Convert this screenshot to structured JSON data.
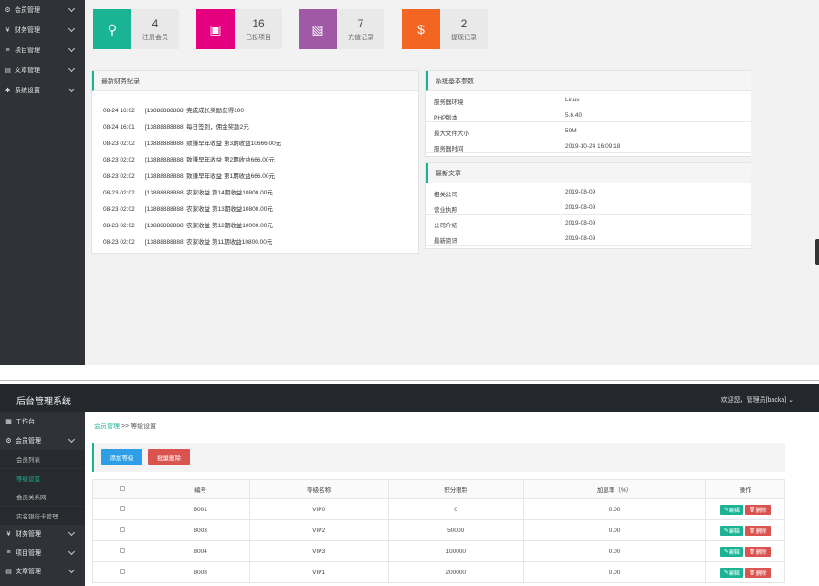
{
  "top": {
    "sidebar": [
      {
        "icon": "gear-icon",
        "label": "会员管理"
      },
      {
        "icon": "money-icon",
        "label": "财务管理"
      },
      {
        "icon": "list-icon",
        "label": "项目管理"
      },
      {
        "icon": "doc-icon",
        "label": "文章管理"
      },
      {
        "icon": "cog-icon",
        "label": "系统设置"
      }
    ],
    "stats": [
      {
        "num": "4",
        "label": "注册会员",
        "color": "#1ab394",
        "icon": "user-icon"
      },
      {
        "num": "16",
        "label": "已投项目",
        "color": "#e4007f",
        "icon": "file-icon"
      },
      {
        "num": "7",
        "label": "充值记录",
        "color": "#a05aa5",
        "icon": "wallet-icon"
      },
      {
        "num": "2",
        "label": "提现记录",
        "color": "#f26522",
        "icon": "moneybag-icon"
      }
    ],
    "finance_panel": {
      "title": "最新财务纪录",
      "rows": [
        {
          "time": "08-24 16:02",
          "text": "[13888888888] 完成成长奖励获得100"
        },
        {
          "time": "08-24 16:01",
          "text": "[13888888888] 每日签到，佣金奖励2元"
        },
        {
          "time": "08-23 02:02",
          "text": "[13888888888] 致赚早年收益 第3期收益10666.00元"
        },
        {
          "time": "08-23 02:02",
          "text": "[13888888888] 致赚早年收益 第2期收益666.00元"
        },
        {
          "time": "08-23 02:02",
          "text": "[13888888888] 致赚早年收益 第1期收益666.00元"
        },
        {
          "time": "08-23 02:02",
          "text": "[13888888888] 农家收益 第14期收益10800.00元"
        },
        {
          "time": "08-23 02:02",
          "text": "[13888888888] 农家收益 第13期收益10800.00元"
        },
        {
          "time": "08-23 02:02",
          "text": "[13888888888] 农家收益 第12期收益10000.00元"
        },
        {
          "time": "08-23 02:02",
          "text": "[13888888888] 农家收益 第11期收益10800.00元"
        }
      ]
    },
    "system_panel": {
      "title": "系统基本参数",
      "rows": [
        {
          "k": "服务器环境",
          "v": "Linux"
        },
        {
          "k": "PHP版本",
          "v": "5.6.40"
        },
        {
          "k": "最大文件大小",
          "v": "50M"
        },
        {
          "k": "服务器时间",
          "v": "2019-10-24 16:09:18"
        }
      ]
    },
    "articles_panel": {
      "title": "最新文章",
      "rows": [
        {
          "k": "相关公司",
          "v": "2019-08-09"
        },
        {
          "k": "营业执照",
          "v": "2019-08-09"
        },
        {
          "k": "公司介绍",
          "v": "2019-08-09"
        },
        {
          "k": "最新资讯",
          "v": "2019-08-09"
        }
      ]
    }
  },
  "bottom": {
    "brand": "后台管理系统",
    "welcome": "欢迎您，管理员[backa]",
    "sidebar": [
      {
        "type": "item",
        "icon": "dashboard-icon",
        "label": "工作台",
        "chev": false
      },
      {
        "type": "item",
        "icon": "gear-icon",
        "label": "会员管理",
        "chev": true
      },
      {
        "type": "sub",
        "label": "会员列表",
        "active": false
      },
      {
        "type": "sub",
        "label": "等级设置",
        "active": true
      },
      {
        "type": "sub",
        "label": "会员关系网",
        "active": false
      },
      {
        "type": "sub",
        "label": "实名银行卡管理",
        "active": false
      },
      {
        "type": "item",
        "icon": "money-icon",
        "label": "财务管理",
        "chev": true
      },
      {
        "type": "item",
        "icon": "list-icon",
        "label": "项目管理",
        "chev": true
      },
      {
        "type": "item",
        "icon": "doc-icon",
        "label": "文章管理",
        "chev": true
      }
    ],
    "breadcrumb": {
      "link": "会员管理",
      "sep": ">>",
      "current": "等级设置"
    },
    "buttons": {
      "add": "添加等级",
      "batch_delete": "批量删除"
    },
    "table": {
      "headers": [
        "编号",
        "等级名称",
        "积分限制",
        "加息率（%）",
        "操作"
      ],
      "rows": [
        {
          "id": "8001",
          "name": "VIP0",
          "points": "0",
          "rate": "0.00"
        },
        {
          "id": "8003",
          "name": "VIP2",
          "points": "50000",
          "rate": "0.00"
        },
        {
          "id": "8004",
          "name": "VIP3",
          "points": "100000",
          "rate": "0.00"
        },
        {
          "id": "8008",
          "name": "VIP1",
          "points": "200000",
          "rate": "0.00"
        }
      ],
      "edit_label": "编辑",
      "delete_label": "删除"
    }
  }
}
